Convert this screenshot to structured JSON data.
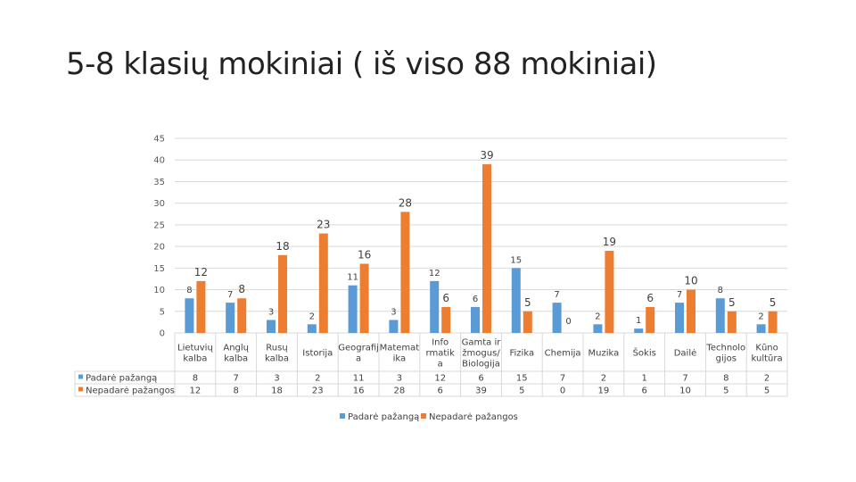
{
  "slide": {
    "title": "5-8 klasių mokiniai ( iš viso 88 mokiniai)"
  },
  "colors": {
    "series1": "#5b9bd5",
    "series2": "#ed7d31",
    "grid": "#d9d9d9",
    "table": "#d9d9d9"
  },
  "chart_data": {
    "type": "bar",
    "title": "",
    "ylim": [
      0,
      45
    ],
    "yticks": [
      0,
      5,
      10,
      15,
      20,
      25,
      30,
      35,
      40,
      45
    ],
    "grid": true,
    "legend_position": "bottom",
    "categories": [
      [
        "Lietuvių",
        "kalba"
      ],
      [
        "Anglų",
        "kalba"
      ],
      [
        "Rusų",
        "kalba"
      ],
      [
        "Istorija"
      ],
      [
        "Geografij",
        "a"
      ],
      [
        "Matemat",
        "ika"
      ],
      [
        "Info",
        "rmatik",
        "a"
      ],
      [
        "Gamta ir",
        "žmogus/",
        "Biologija"
      ],
      [
        "Fizika"
      ],
      [
        "Chemija"
      ],
      [
        "Muzika"
      ],
      [
        "Šokis"
      ],
      [
        "Dailė"
      ],
      [
        "Technolo",
        "gijos"
      ],
      [
        "Kūno",
        "kultūra"
      ]
    ],
    "series": [
      {
        "name": "Padarė pažangą",
        "values": [
          8,
          7,
          3,
          2,
          11,
          3,
          12,
          6,
          15,
          7,
          2,
          1,
          7,
          8,
          2
        ]
      },
      {
        "name": "Nepadarė pažangos",
        "values": [
          12,
          8,
          18,
          23,
          16,
          28,
          6,
          39,
          5,
          0,
          19,
          6,
          10,
          5,
          5
        ]
      }
    ]
  }
}
